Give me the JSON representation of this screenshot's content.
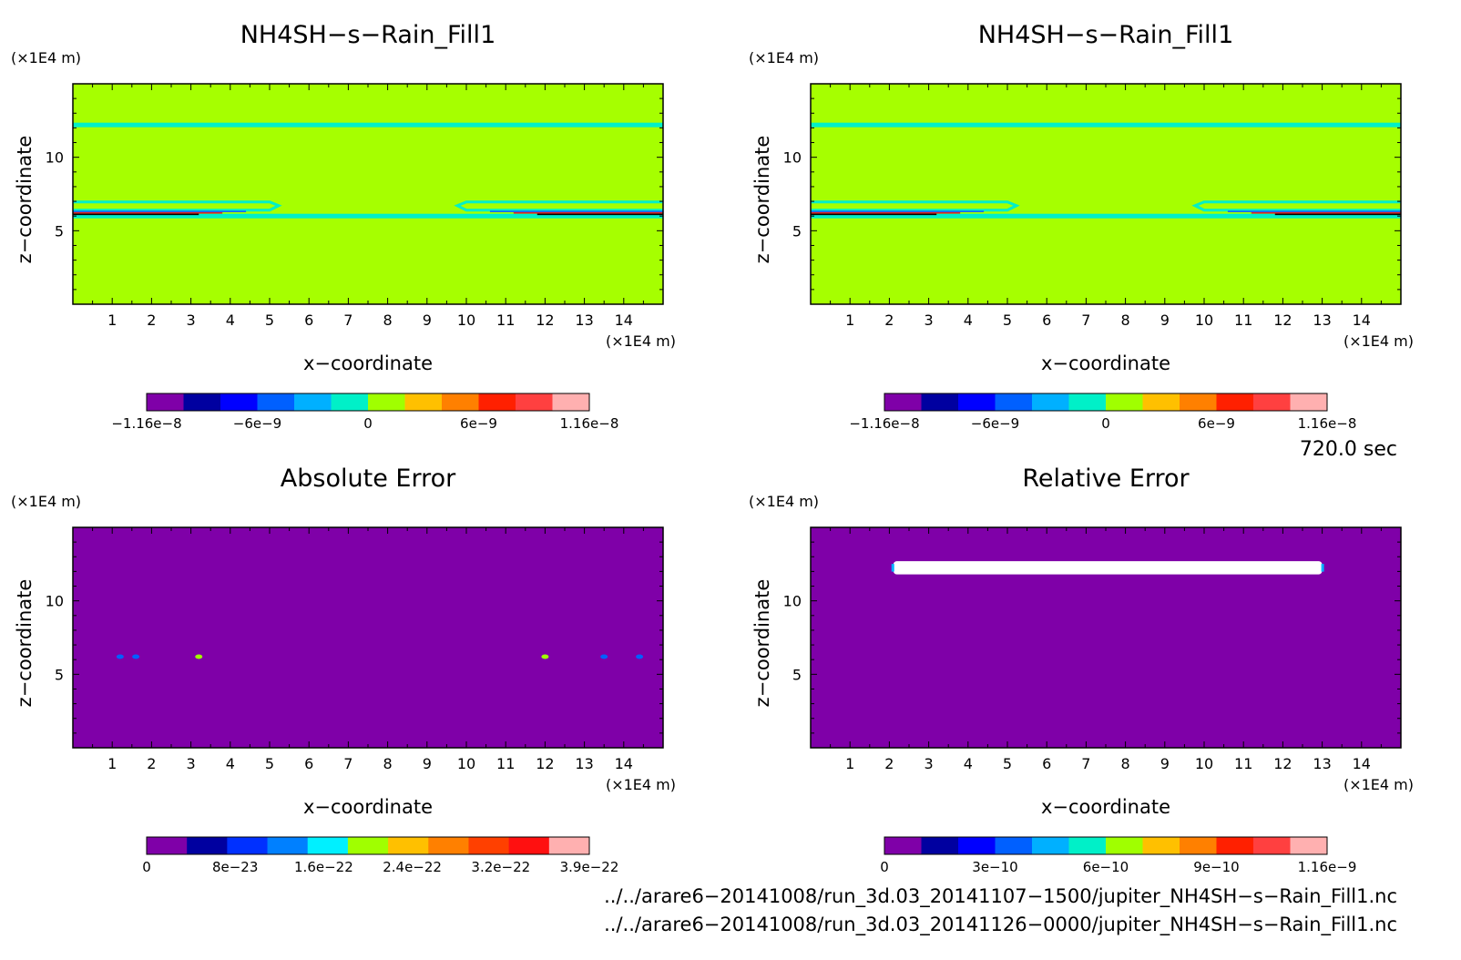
{
  "chart_data": [
    {
      "type": "heatmap",
      "title": "NH4SH−s−Rain_Fill1",
      "xlabel": "x−coordinate",
      "ylabel": "z−coordinate",
      "x_unit": "(×1E4 m)",
      "y_unit": "(×1E4 m)",
      "xlim": [
        0,
        15
      ],
      "ylim": [
        0,
        15
      ],
      "x_ticks": [
        "1",
        "2",
        "3",
        "4",
        "5",
        "6",
        "7",
        "8",
        "9",
        "10",
        "11",
        "12",
        "13",
        "14"
      ],
      "y_ticks": [
        "5",
        "10"
      ],
      "background_color": "#a6ff00",
      "features": [
        {
          "kind": "contour-band",
          "z": 12.2,
          "x_range": [
            0,
            15
          ],
          "color": "#00f0c8"
        },
        {
          "kind": "contour-band",
          "z": 6.0,
          "x_range": [
            0,
            15
          ],
          "color": "#00f0c8"
        },
        {
          "kind": "layered-band",
          "z": 6.4,
          "x_range": [
            0,
            5
          ],
          "colors": [
            "#00f0c8",
            "#1060ff",
            "#e02020",
            "#000000"
          ]
        },
        {
          "kind": "layered-band",
          "z": 6.4,
          "x_range": [
            10,
            15
          ],
          "colors": [
            "#00f0c8",
            "#1060ff",
            "#e02020",
            "#000000"
          ]
        }
      ],
      "colorbar": {
        "colors": [
          "#7f00a8",
          "#0000a0",
          "#0000ff",
          "#0060ff",
          "#00b0ff",
          "#00f0c8",
          "#a0ff00",
          "#ffc000",
          "#ff8000",
          "#ff2000",
          "#ff4040",
          "#ffb0b0"
        ],
        "labels": [
          "−1.16e−8",
          "−6e−9",
          "0",
          "6e−9",
          "1.16e−8"
        ]
      }
    },
    {
      "type": "heatmap",
      "title": "NH4SH−s−Rain_Fill1",
      "xlabel": "x−coordinate",
      "ylabel": "z−coordinate",
      "x_unit": "(×1E4 m)",
      "y_unit": "(×1E4 m)",
      "xlim": [
        0,
        15
      ],
      "ylim": [
        0,
        15
      ],
      "x_ticks": [
        "1",
        "2",
        "3",
        "4",
        "5",
        "6",
        "7",
        "8",
        "9",
        "10",
        "11",
        "12",
        "13",
        "14"
      ],
      "y_ticks": [
        "5",
        "10"
      ],
      "background_color": "#a6ff00",
      "features": [
        {
          "kind": "contour-band",
          "z": 12.2,
          "x_range": [
            0,
            15
          ],
          "color": "#00f0c8"
        },
        {
          "kind": "contour-band",
          "z": 6.0,
          "x_range": [
            0,
            15
          ],
          "color": "#00f0c8"
        },
        {
          "kind": "layered-band",
          "z": 6.4,
          "x_range": [
            0,
            5
          ],
          "colors": [
            "#00f0c8",
            "#1060ff",
            "#e02020",
            "#000000"
          ]
        },
        {
          "kind": "layered-band",
          "z": 6.4,
          "x_range": [
            10,
            15
          ],
          "colors": [
            "#00f0c8",
            "#1060ff",
            "#e02020",
            "#000000"
          ]
        }
      ],
      "colorbar": {
        "colors": [
          "#7f00a8",
          "#0000a0",
          "#0000ff",
          "#0060ff",
          "#00b0ff",
          "#00f0c8",
          "#a0ff00",
          "#ffc000",
          "#ff8000",
          "#ff2000",
          "#ff4040",
          "#ffb0b0"
        ],
        "labels": [
          "−1.16e−8",
          "−6e−9",
          "0",
          "6e−9",
          "1.16e−8"
        ]
      }
    },
    {
      "type": "heatmap",
      "title": "Absolute Error",
      "xlabel": "x−coordinate",
      "ylabel": "z−coordinate",
      "x_unit": "(×1E4 m)",
      "y_unit": "(×1E4 m)",
      "xlim": [
        0,
        15
      ],
      "ylim": [
        0,
        15
      ],
      "x_ticks": [
        "1",
        "2",
        "3",
        "4",
        "5",
        "6",
        "7",
        "8",
        "9",
        "10",
        "11",
        "12",
        "13",
        "14"
      ],
      "y_ticks": [
        "5",
        "10"
      ],
      "background_color": "#7f00a8",
      "features": [
        {
          "kind": "spot",
          "x": 3.2,
          "z": 6.2,
          "color": "#a0ff00"
        },
        {
          "kind": "spot",
          "x": 12.0,
          "z": 6.2,
          "color": "#a0ff00"
        },
        {
          "kind": "spot",
          "x": 1.2,
          "z": 6.2,
          "color": "#0060ff"
        },
        {
          "kind": "spot",
          "x": 1.6,
          "z": 6.2,
          "color": "#0060ff"
        },
        {
          "kind": "spot",
          "x": 13.5,
          "z": 6.2,
          "color": "#0060ff"
        },
        {
          "kind": "spot",
          "x": 14.4,
          "z": 6.2,
          "color": "#0060ff"
        }
      ],
      "colorbar": {
        "colors": [
          "#7f00a8",
          "#0000a0",
          "#0030ff",
          "#0080ff",
          "#00f0ff",
          "#a0ff00",
          "#ffc000",
          "#ff8000",
          "#ff4000",
          "#ff1010",
          "#ffb0b0"
        ],
        "labels": [
          "0",
          "8e−23",
          "1.6e−22",
          "2.4e−22",
          "3.2e−22",
          "3.9e−22"
        ]
      }
    },
    {
      "type": "heatmap",
      "title": "Relative Error",
      "xlabel": "x−coordinate",
      "ylabel": "z−coordinate",
      "x_unit": "(×1E4 m)",
      "y_unit": "(×1E4 m)",
      "xlim": [
        0,
        15
      ],
      "ylim": [
        0,
        15
      ],
      "x_ticks": [
        "1",
        "2",
        "3",
        "4",
        "5",
        "6",
        "7",
        "8",
        "9",
        "10",
        "11",
        "12",
        "13",
        "14"
      ],
      "y_ticks": [
        "5",
        "10"
      ],
      "background_color": "#7f00a8",
      "features": [
        {
          "kind": "undefined-band",
          "x_range": [
            2.1,
            13.0
          ],
          "z_range": [
            11.8,
            12.7
          ],
          "color": "#ffffff"
        }
      ],
      "colorbar": {
        "colors": [
          "#7f00a8",
          "#0000a0",
          "#0000ff",
          "#0060ff",
          "#00b0ff",
          "#00f0c8",
          "#a0ff00",
          "#ffc000",
          "#ff8000",
          "#ff2000",
          "#ff4040",
          "#ffb0b0"
        ],
        "labels": [
          "0",
          "3e−10",
          "6e−10",
          "9e−10",
          "1.16e−9"
        ]
      }
    }
  ],
  "time_label": "720.0 sec",
  "file_paths": [
    "../../arare6−20141008/run_3d.03_20141107−1500/jupiter_NH4SH−s−Rain_Fill1.nc",
    "../../arare6−20141008/run_3d.03_20141126−0000/jupiter_NH4SH−s−Rain_Fill1.nc"
  ]
}
